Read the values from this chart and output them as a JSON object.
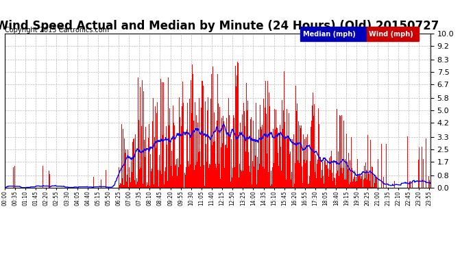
{
  "title": "Wind Speed Actual and Median by Minute (24 Hours) (Old) 20150727",
  "copyright": "Copyright 2015 Cartronics.com",
  "yticks": [
    0.0,
    0.8,
    1.7,
    2.5,
    3.3,
    4.2,
    5.0,
    5.8,
    6.7,
    7.5,
    8.3,
    9.2,
    10.0
  ],
  "ylim": [
    0.0,
    10.0
  ],
  "bar_color": "#ff0000",
  "line_color": "#0000ff",
  "background_color": "#ffffff",
  "grid_color": "#bbbbbb",
  "title_fontsize": 12,
  "copyright_fontsize": 7,
  "num_minutes": 1440,
  "tick_step": 35
}
